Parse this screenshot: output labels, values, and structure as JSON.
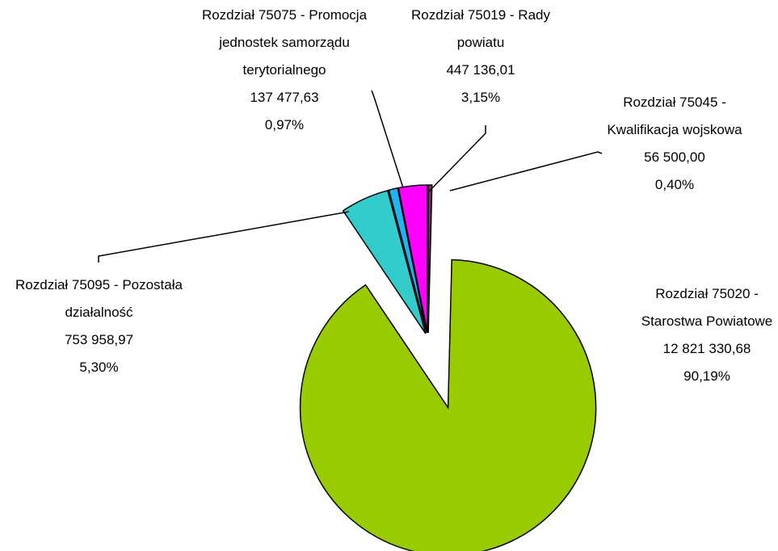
{
  "chart_data": {
    "type": "pie",
    "categories": [
      "Rozdział 75045 - Kwalifikacja wojskowa",
      "Rozdział 75020 - Starostwa Powiatowe",
      "Rozdział 75095 - Pozostała działalność",
      "Rozdział 75075 - Promocja jednostek samorządu terytorialnego",
      "Rozdział 75019 - Rady powiatu"
    ],
    "values": [
      0.4,
      90.19,
      5.3,
      0.97,
      3.15
    ],
    "value_labels": [
      "0,40%",
      "90,19%",
      "5,30%",
      "0,97%",
      "3,15%"
    ],
    "amounts": [
      56500.0,
      12821330.68,
      753958.97,
      137477.63,
      447136.01
    ],
    "amount_labels": [
      "56 500,00",
      "12 821 330,68",
      "753 958,97",
      "137 477,63",
      "447 136,01"
    ],
    "colors": [
      "#7f2f6f",
      "#99cc00",
      "#33cccc",
      "#1fb4ef",
      "#ff00ff"
    ]
  }
}
